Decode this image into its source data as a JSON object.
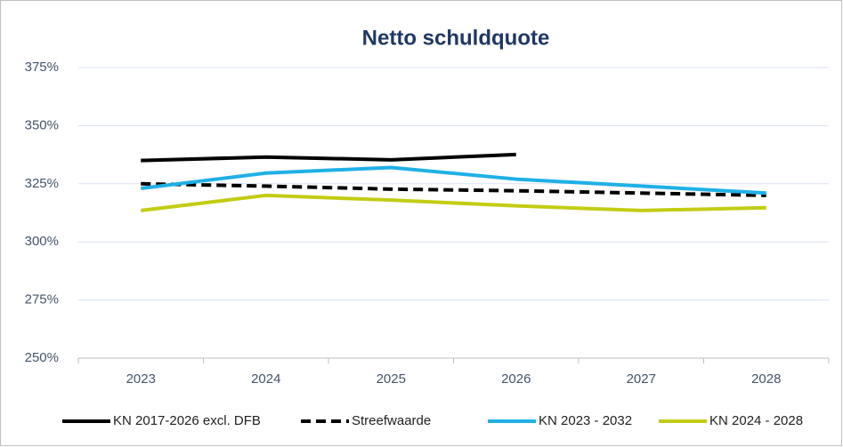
{
  "chart_data": {
    "type": "line",
    "title": "Netto schuldquote",
    "categories": [
      "2023",
      "2024",
      "2025",
      "2026",
      "2027",
      "2028"
    ],
    "series": [
      {
        "name": "KN 2017-2026 excl. DFB",
        "color": "#000000",
        "dashed": false,
        "values": [
          335,
          336.5,
          335.3,
          337.6,
          null,
          null
        ]
      },
      {
        "name": "Streefwaarde",
        "color": "#000000",
        "dashed": true,
        "values": [
          325,
          324,
          322.7,
          322,
          321,
          320
        ]
      },
      {
        "name": "KN 2023 - 2032",
        "color": "#1fb0e6",
        "dashed": false,
        "values": [
          323,
          329.6,
          332,
          327,
          324,
          321
        ]
      },
      {
        "name": "KN 2024 - 2028",
        "color": "#c3cc14",
        "dashed": false,
        "values": [
          313.5,
          320,
          318,
          315.5,
          313.5,
          314.7
        ]
      }
    ],
    "ylim": [
      250,
      375
    ],
    "yticks": [
      {
        "value": 250,
        "label": "250%"
      },
      {
        "value": 275,
        "label": "275%"
      },
      {
        "value": 300,
        "label": "300%"
      },
      {
        "value": 325,
        "label": "325%"
      },
      {
        "value": 350,
        "label": "350%"
      },
      {
        "value": 375,
        "label": "375%"
      }
    ],
    "grid": true,
    "legend": "bottom"
  }
}
